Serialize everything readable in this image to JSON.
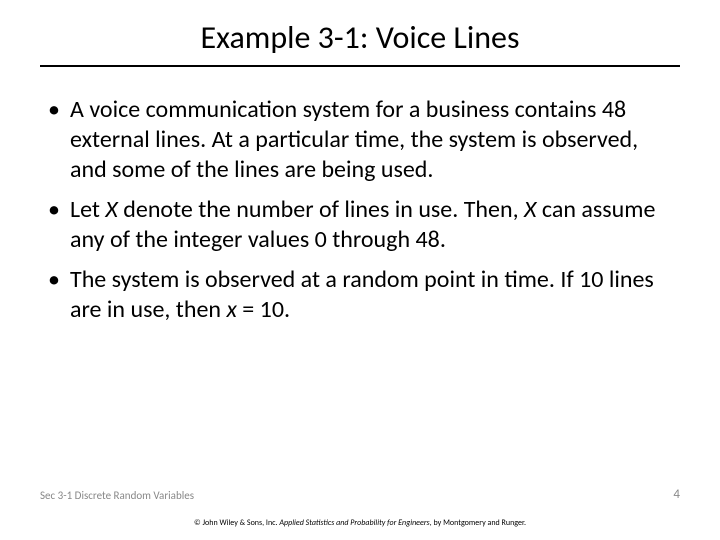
{
  "title": "Example 3-1:  Voice Lines",
  "bullets": {
    "b1a": "A voice communication system for a business contains 48 external lines.  At a particular time, the system is observed, and some of the lines are being used.",
    "b2a": "Let ",
    "b2x1": "X",
    "b2b": " denote the number of lines in use.  Then, ",
    "b2x2": "X",
    "b2c": " can assume any of the integer values 0 through 48.",
    "b3a": "The system is observed at a random point in time.  If 10 lines are in use, then ",
    "b3x": "x",
    "b3b": " = 10."
  },
  "footer": {
    "section": "Sec 3-1 Discrete Random Variables",
    "page": "4",
    "copyright_pre": "© John Wiley & Sons, Inc.  ",
    "copyright_book": "Applied Statistics and Probability for Engineers",
    "copyright_post": ", by Montgomery and Runger."
  }
}
